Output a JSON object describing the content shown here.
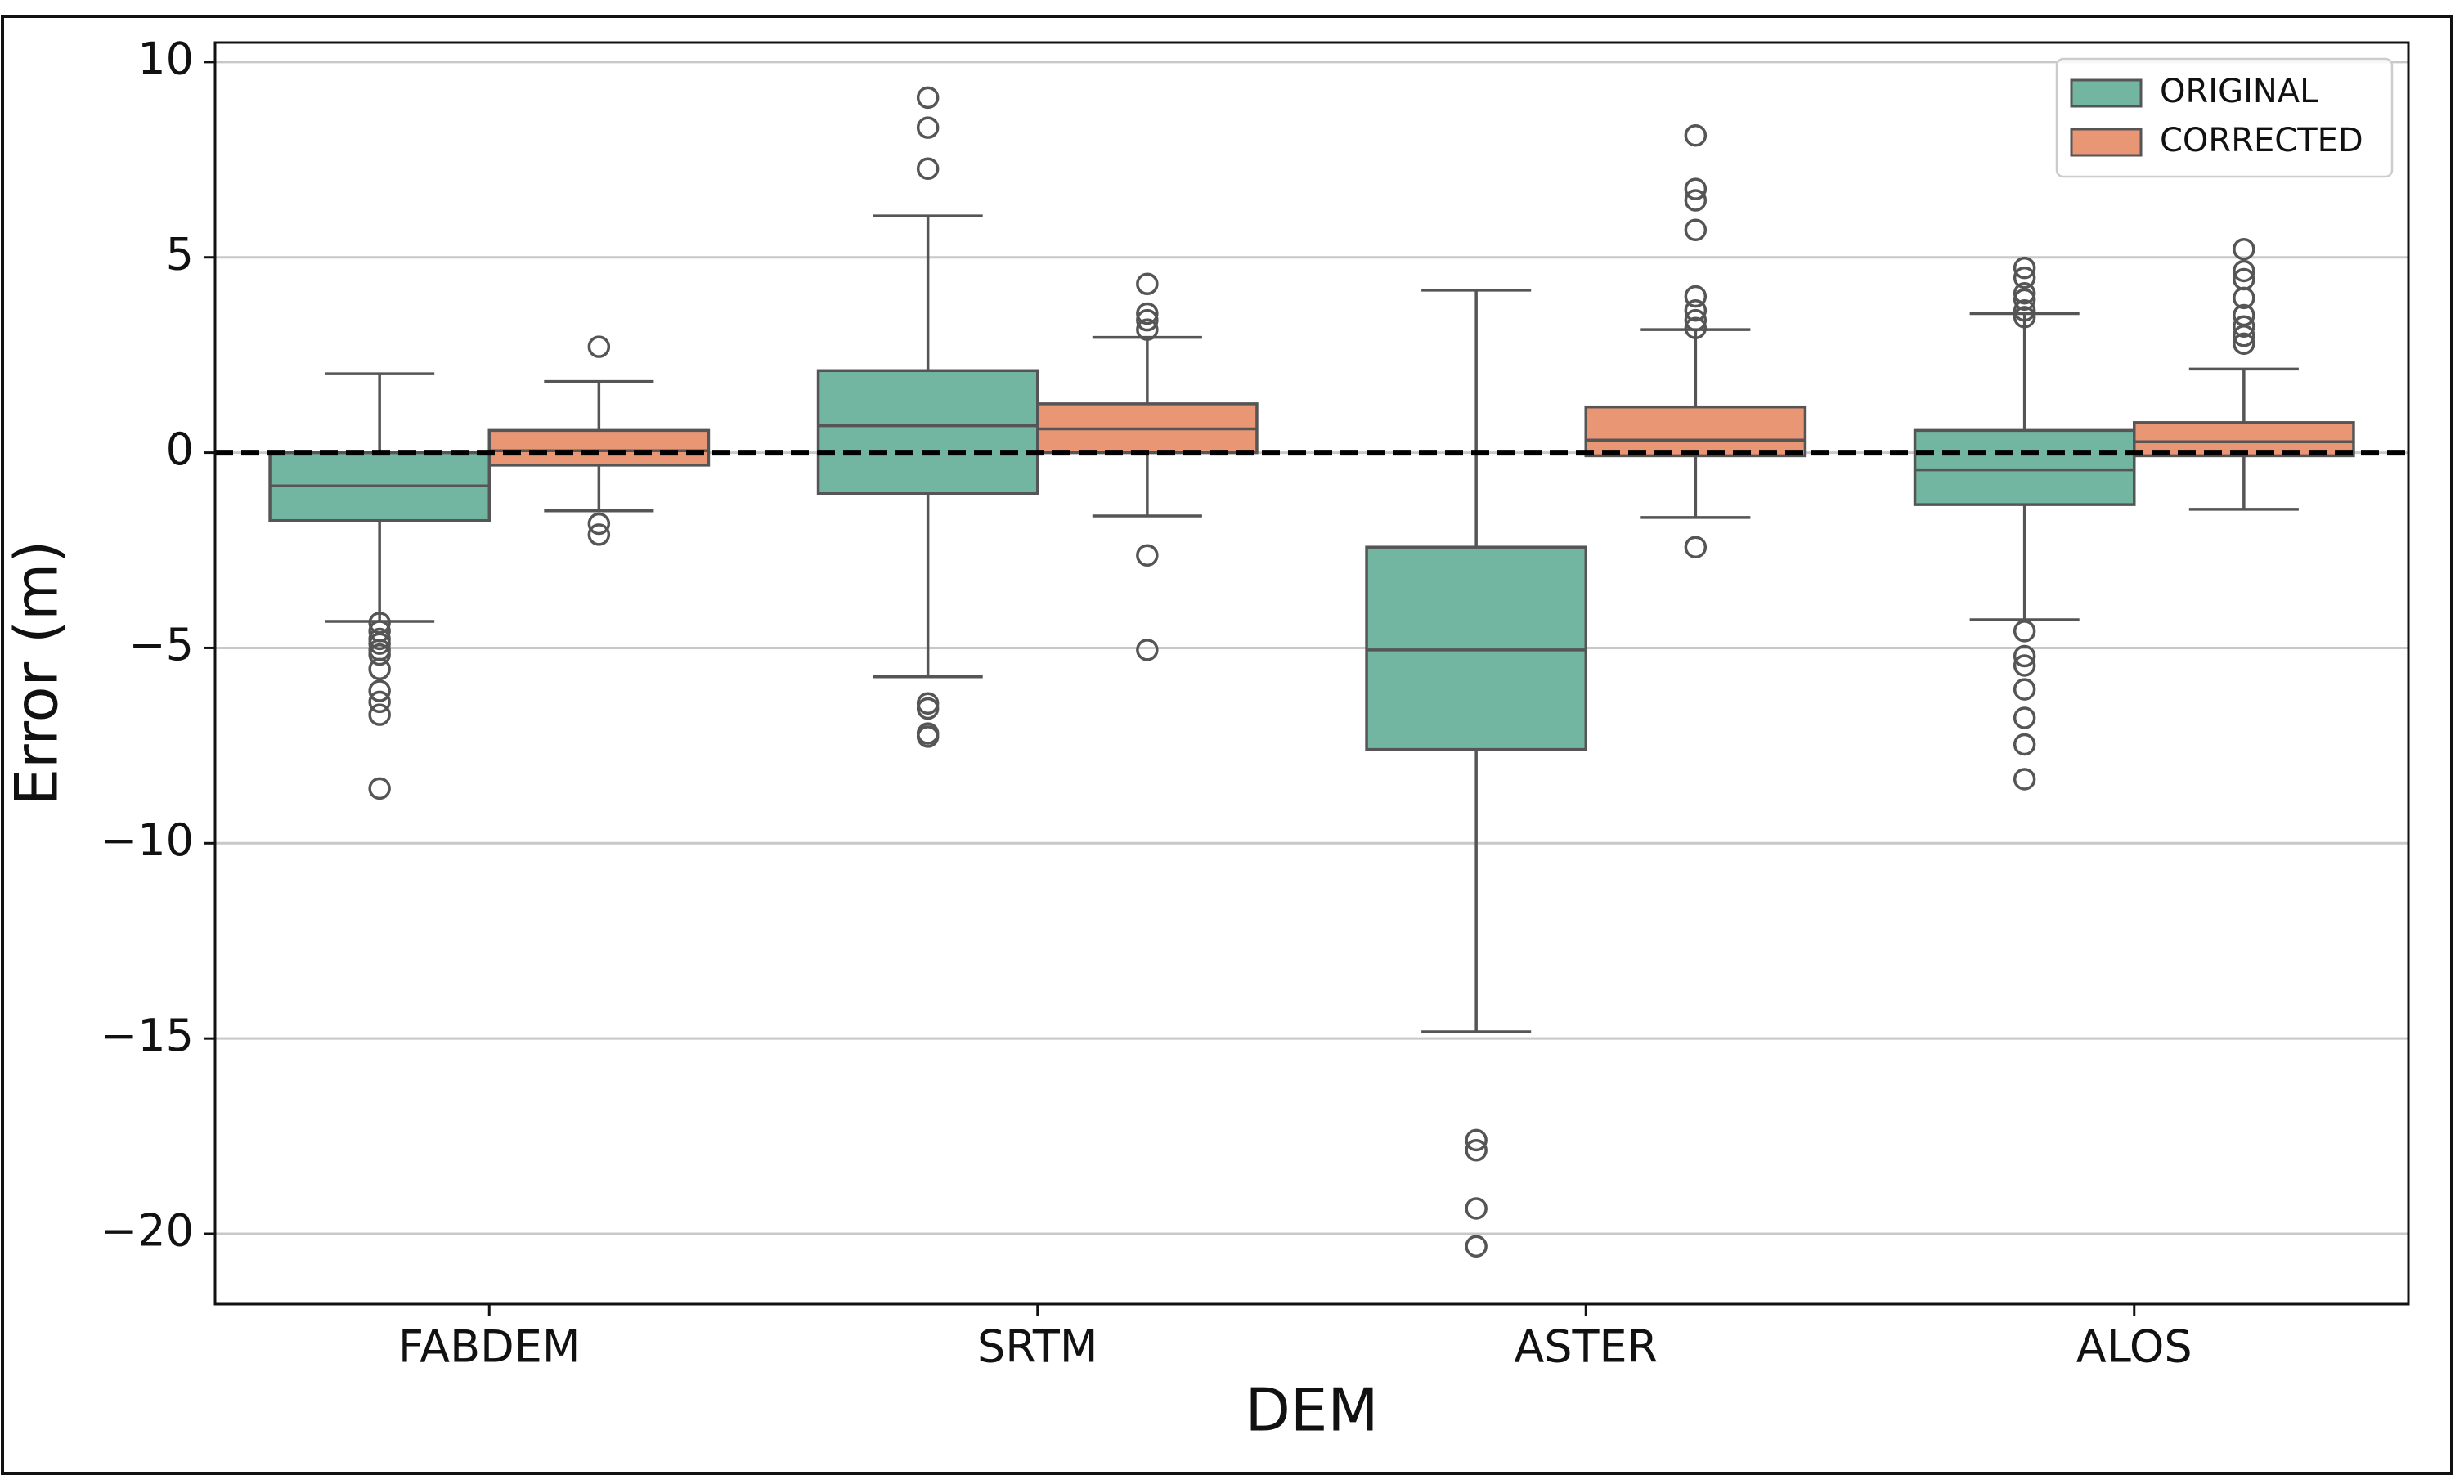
{
  "chart_data": {
    "type": "box",
    "x_label": "DEM",
    "y_label": "Error (m)",
    "categories": [
      "FABDEM",
      "SRTM",
      "ASTER",
      "ALOS"
    ],
    "series": [
      {
        "name": "ORIGINAL",
        "color": "#72b6a1",
        "stats": [
          {
            "whislo": -4.32,
            "q1": -1.74,
            "med": -0.85,
            "q3": 0,
            "whishi": 2.02,
            "fliers": [
              -4.36,
              -4.57,
              -4.77,
              -4.89,
              -5.05,
              -5.17,
              -5.54,
              -6.1,
              -6.38,
              -6.71,
              -8.6
            ]
          },
          {
            "whislo": -5.74,
            "q1": -1.05,
            "med": 0.69,
            "q3": 2.1,
            "whishi": 6.06,
            "fliers": [
              9.09,
              8.32,
              7.27,
              -6.42,
              -6.55,
              -7.19,
              -7.27
            ]
          },
          {
            "whislo": -14.83,
            "q1": -7.6,
            "med": -5.05,
            "q3": -2.42,
            "whishi": 4.16,
            "fliers": [
              -17.6,
              -17.86,
              -19.35,
              -20.32
            ]
          },
          {
            "whislo": -4.28,
            "q1": -1.33,
            "med": -0.44,
            "q3": 0.57,
            "whishi": 3.56,
            "fliers": [
              4.73,
              4.48,
              4.08,
              3.92,
              3.64,
              3.47,
              -4.57,
              -5.21,
              -5.45,
              -6.06,
              -6.79,
              -7.47,
              -8.36
            ]
          }
        ]
      },
      {
        "name": "CORRECTED",
        "color": "#e99675",
        "stats": [
          {
            "whislo": -1.49,
            "q1": -0.32,
            "med": 0.05,
            "q3": 0.57,
            "whishi": 1.82,
            "fliers": [
              2.71,
              -1.82,
              -2.1
            ]
          },
          {
            "whislo": -1.62,
            "q1": 0,
            "med": 0.61,
            "q3": 1.25,
            "whishi": 2.95,
            "fliers": [
              4.32,
              3.56,
              3.39,
              3.15,
              -2.63,
              -5.05
            ]
          },
          {
            "whislo": -1.66,
            "q1": -0.08,
            "med": 0.32,
            "q3": 1.17,
            "whishi": 3.15,
            "fliers": [
              8.12,
              6.75,
              6.46,
              5.7,
              4.0,
              3.64,
              3.39,
              3.19,
              -2.42
            ]
          },
          {
            "whislo": -1.45,
            "q1": -0.08,
            "med": 0.28,
            "q3": 0.77,
            "whishi": 2.14,
            "fliers": [
              5.21,
              4.65,
              4.44,
              3.96,
              3.52,
              3.23,
              2.99,
              2.79
            ]
          }
        ]
      }
    ],
    "ylim": [
      -21.8,
      10.5
    ],
    "yticks": [
      10,
      5,
      0,
      {
        "value": -5,
        "label": "−5"
      },
      {
        "value": -10,
        "label": "−10"
      },
      {
        "value": -15,
        "label": "−15"
      },
      {
        "value": -20,
        "label": "−20"
      }
    ],
    "grid": true,
    "reference_line": 0,
    "legend": "upper right"
  }
}
